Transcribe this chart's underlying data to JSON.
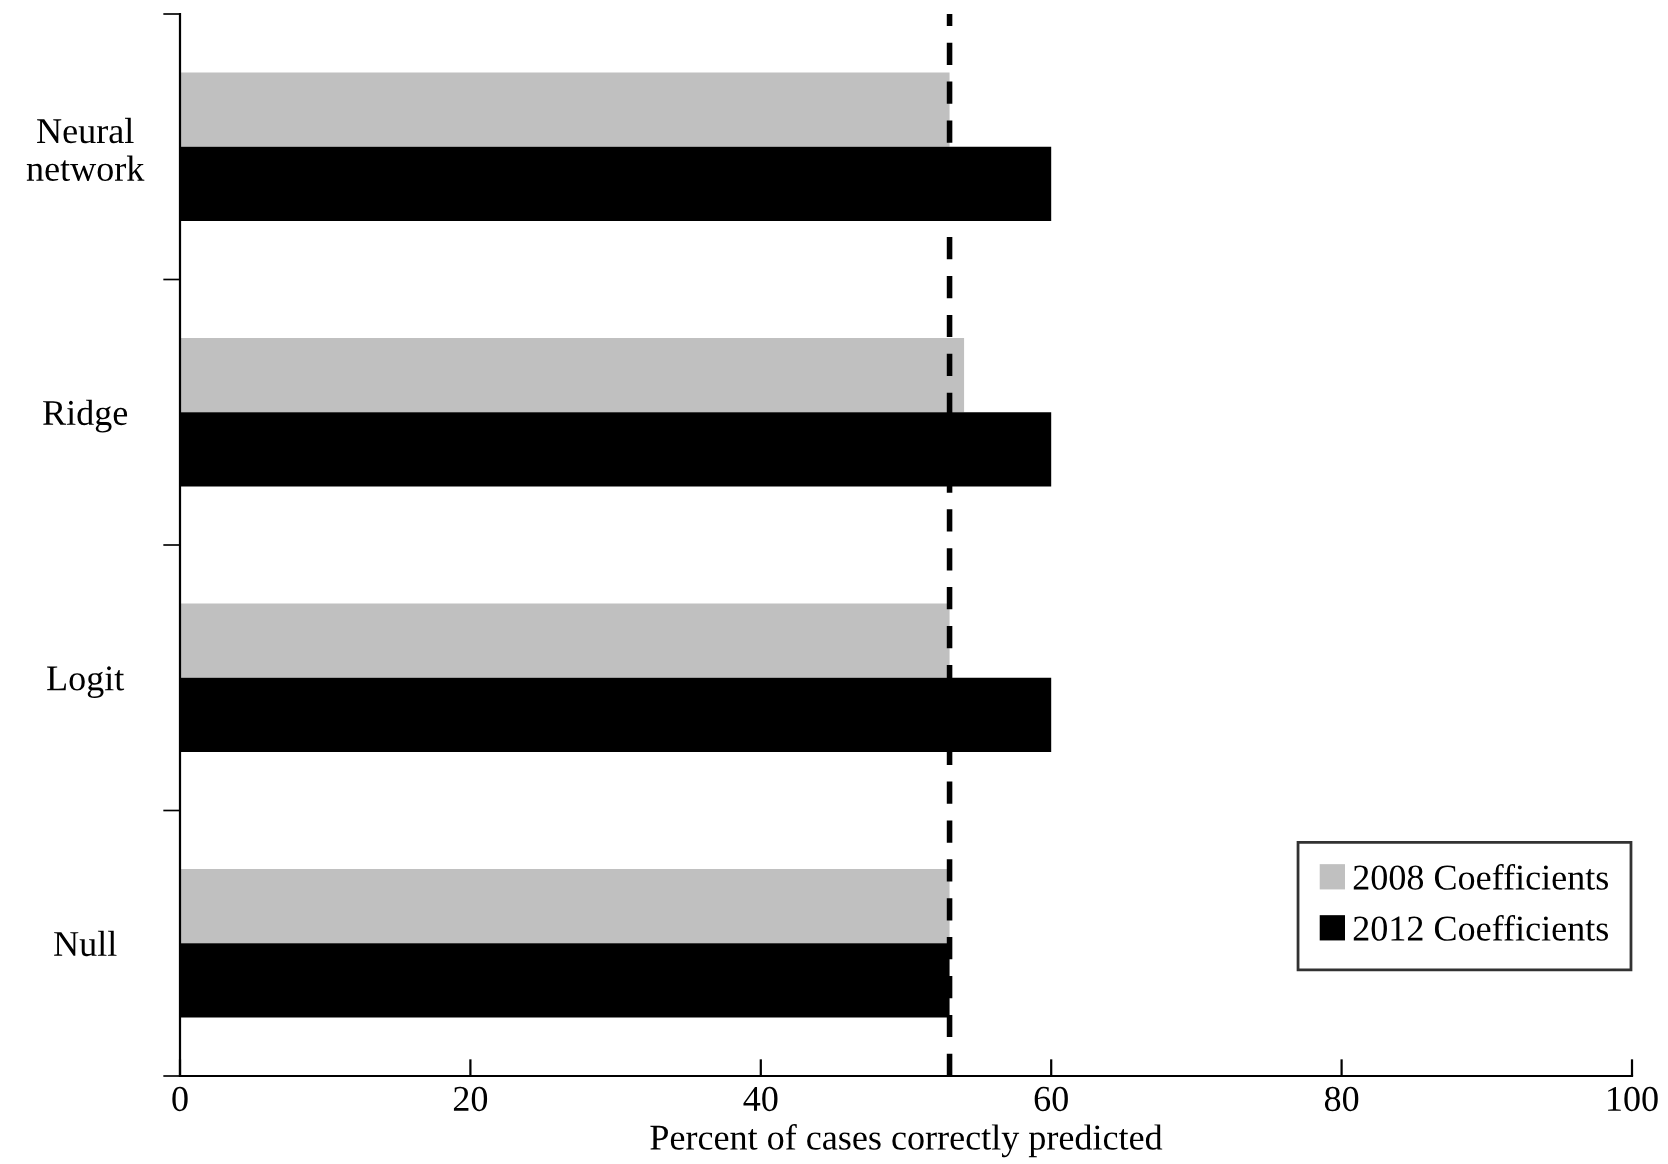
{
  "chart_data": {
    "type": "bar",
    "orientation": "horizontal",
    "xlabel": "Percent of cases correctly predicted",
    "categories": [
      "Neural\nnetwork",
      "Ridge",
      "Logit",
      "Null"
    ],
    "series": [
      {
        "name": "2008 Coefficients",
        "color": "#c0c0c0",
        "values": [
          53,
          54,
          53,
          53
        ]
      },
      {
        "name": "2012 Coefficients",
        "color": "#000000",
        "values": [
          60,
          60,
          60,
          53
        ]
      }
    ],
    "xlim": [
      0,
      100
    ],
    "xticks": [
      0,
      20,
      40,
      60,
      80,
      100
    ],
    "grid": false,
    "legend": "bottom right",
    "ref_lines": [
      {
        "axis": "x",
        "value": 53,
        "color": "#000000",
        "line_style": "dashed"
      }
    ]
  }
}
